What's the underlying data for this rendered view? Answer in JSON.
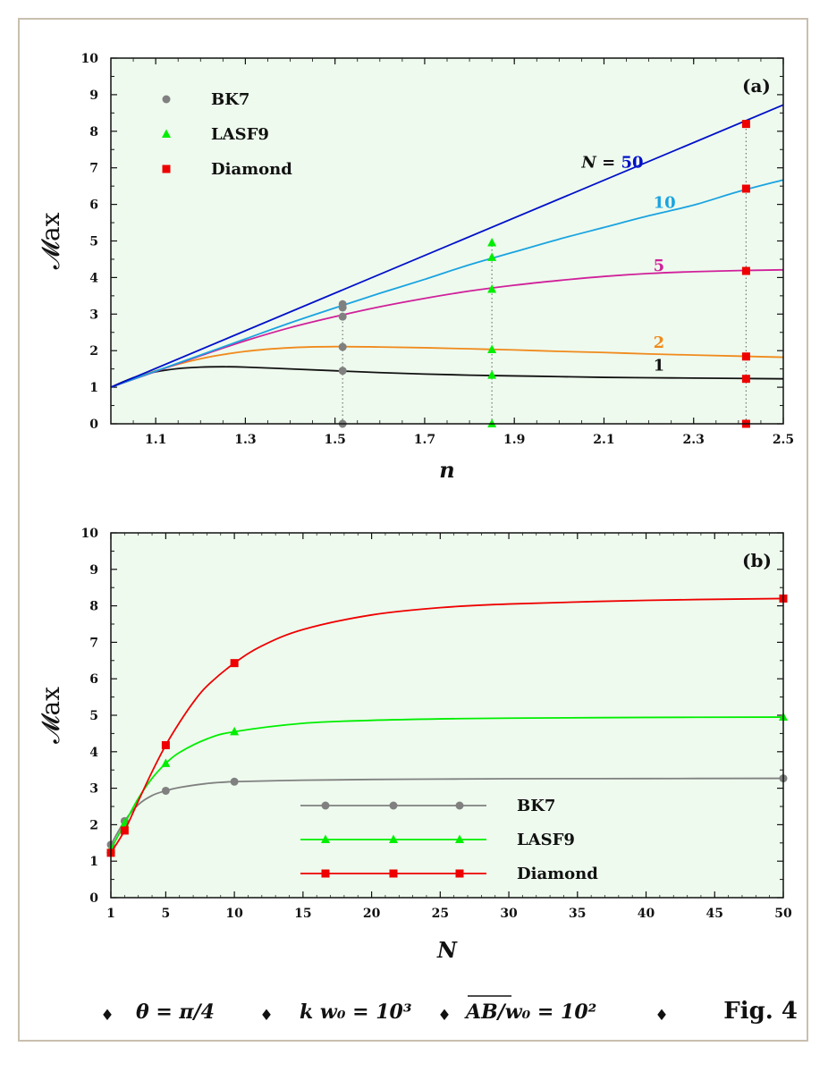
{
  "figure_label": "Fig. 4",
  "footer": {
    "items": [
      "θ = π/4",
      "k w₀ = 10³",
      "AB/w₀ = 10²"
    ],
    "bullet": "♦"
  },
  "colors": {
    "panel_bg": "#eefaee",
    "BK7": "#808080",
    "LASF9": "#00ee00",
    "Diamond": "#ee0000",
    "N50": "#0010c8",
    "N10": "#1aa3e0",
    "N5": "#d0209a",
    "N2": "#f08a1c",
    "N1": "#111111"
  },
  "chart_data": [
    {
      "type": "line",
      "panel_label": "(a)",
      "xlabel": "n",
      "ylabel": "𝓜ax",
      "xlim": [
        1.0,
        2.5
      ],
      "ylim": [
        0,
        10
      ],
      "xticks": [
        "1.1",
        "1.3",
        "1.5",
        "1.7",
        "1.9",
        "2.1",
        "2.3",
        "2.5"
      ],
      "yticks": [
        "0",
        "1",
        "2",
        "3",
        "4",
        "5",
        "6",
        "7",
        "8",
        "9",
        "10"
      ],
      "legend": {
        "position": "top-left",
        "entries": [
          "BK7",
          "LASF9",
          "Diamond"
        ]
      },
      "series": [
        {
          "name": "1",
          "label": "1",
          "label_pos": [
            2.21,
            1.45
          ],
          "color_key": "N1",
          "x": [
            1.0,
            1.05,
            1.1,
            1.15,
            1.2,
            1.25,
            1.3,
            1.4,
            1.5,
            1.6,
            1.7,
            1.8,
            1.9,
            2.0,
            2.1,
            2.2,
            2.3,
            2.4,
            2.5
          ],
          "y": [
            1.0,
            1.26,
            1.42,
            1.51,
            1.55,
            1.56,
            1.55,
            1.5,
            1.45,
            1.4,
            1.36,
            1.33,
            1.31,
            1.29,
            1.27,
            1.26,
            1.25,
            1.24,
            1.23
          ]
        },
        {
          "name": "2",
          "label": "2",
          "label_pos": [
            2.21,
            2.08
          ],
          "color_key": "N2",
          "x": [
            1.0,
            1.1,
            1.2,
            1.3,
            1.4,
            1.5,
            1.6,
            1.7,
            1.8,
            1.9,
            2.0,
            2.1,
            2.2,
            2.3,
            2.4,
            2.5
          ],
          "y": [
            1.0,
            1.45,
            1.78,
            1.98,
            2.08,
            2.11,
            2.1,
            2.08,
            2.05,
            2.02,
            1.98,
            1.95,
            1.91,
            1.88,
            1.85,
            1.82
          ]
        },
        {
          "name": "5",
          "label": "5",
          "label_pos": [
            2.21,
            4.18
          ],
          "color_key": "N5",
          "x": [
            1.0,
            1.1,
            1.2,
            1.3,
            1.4,
            1.5,
            1.6,
            1.7,
            1.8,
            1.9,
            2.0,
            2.1,
            2.2,
            2.3,
            2.4,
            2.5
          ],
          "y": [
            1.0,
            1.43,
            1.86,
            2.27,
            2.63,
            2.93,
            3.2,
            3.43,
            3.63,
            3.79,
            3.92,
            4.03,
            4.11,
            4.16,
            4.19,
            4.21
          ]
        },
        {
          "name": "10",
          "label": "10",
          "label_pos": [
            2.21,
            5.9
          ],
          "color_key": "N10",
          "x": [
            1.0,
            1.1,
            1.2,
            1.3,
            1.4,
            1.5,
            1.6,
            1.7,
            1.8,
            1.9,
            2.0,
            2.1,
            2.2,
            2.3,
            2.4,
            2.5
          ],
          "y": [
            1.0,
            1.44,
            1.88,
            2.32,
            2.76,
            3.17,
            3.57,
            3.95,
            4.35,
            4.7,
            5.05,
            5.37,
            5.69,
            5.98,
            6.35,
            6.67
          ]
        },
        {
          "name": "50",
          "label": "N = 50",
          "label_pos": [
            2.05,
            7.0
          ],
          "color_key": "N50",
          "x": [
            1.0,
            2.5
          ],
          "y": [
            1.0,
            8.72
          ]
        }
      ],
      "markers": [
        {
          "material": "BK7",
          "x": 1.517,
          "y": [
            0.0,
            1.45,
            2.1,
            2.93,
            3.18,
            3.27
          ]
        },
        {
          "material": "LASF9",
          "x": 1.85,
          "y": [
            0.0,
            1.33,
            2.03,
            3.68,
            4.55,
            4.95
          ]
        },
        {
          "material": "Diamond",
          "x": 2.417,
          "y": [
            0.0,
            1.23,
            1.84,
            4.18,
            6.43,
            8.2
          ]
        }
      ]
    },
    {
      "type": "line",
      "panel_label": "(b)",
      "xlabel": "N",
      "ylabel": "𝓜ax",
      "xlim": [
        1,
        50
      ],
      "ylim": [
        0,
        10
      ],
      "xticks": [
        "1",
        "5",
        "10",
        "15",
        "20",
        "25",
        "30",
        "35",
        "40",
        "45",
        "50"
      ],
      "yticks": [
        "0",
        "1",
        "2",
        "3",
        "4",
        "5",
        "6",
        "7",
        "8",
        "9",
        "10"
      ],
      "legend": {
        "position": "lower-center",
        "entries": [
          "BK7",
          "LASF9",
          "Diamond"
        ]
      },
      "series": [
        {
          "name": "BK7",
          "color_key": "BK7",
          "x": [
            1,
            2,
            3,
            4,
            5,
            6,
            8,
            10,
            15,
            20,
            25,
            30,
            40,
            50
          ],
          "y": [
            1.45,
            2.1,
            2.55,
            2.8,
            2.93,
            3.02,
            3.13,
            3.18,
            3.22,
            3.24,
            3.25,
            3.26,
            3.265,
            3.27
          ],
          "marker_x": [
            1,
            2,
            5,
            10,
            50
          ],
          "marker_y": [
            1.45,
            2.1,
            2.93,
            3.18,
            3.27
          ]
        },
        {
          "name": "LASF9",
          "color_key": "LASF9",
          "x": [
            1,
            2,
            3,
            4,
            5,
            6,
            8,
            10,
            15,
            20,
            25,
            30,
            40,
            50
          ],
          "y": [
            1.33,
            2.03,
            2.72,
            3.27,
            3.68,
            3.98,
            4.35,
            4.55,
            4.78,
            4.86,
            4.9,
            4.92,
            4.94,
            4.95
          ],
          "marker_x": [
            1,
            2,
            5,
            10,
            50
          ],
          "marker_y": [
            1.33,
            2.03,
            3.68,
            4.55,
            4.95
          ]
        },
        {
          "name": "Diamond",
          "color_key": "Diamond",
          "x": [
            1,
            2,
            3,
            4,
            5,
            6,
            7,
            8,
            10,
            12,
            15,
            20,
            25,
            30,
            40,
            50
          ],
          "y": [
            1.23,
            1.84,
            2.65,
            3.45,
            4.18,
            4.8,
            5.35,
            5.8,
            6.43,
            6.9,
            7.35,
            7.75,
            7.95,
            8.05,
            8.15,
            8.2
          ],
          "marker_x": [
            1,
            2,
            5,
            10,
            50
          ],
          "marker_y": [
            1.23,
            1.84,
            4.18,
            6.43,
            8.2
          ]
        }
      ]
    }
  ]
}
